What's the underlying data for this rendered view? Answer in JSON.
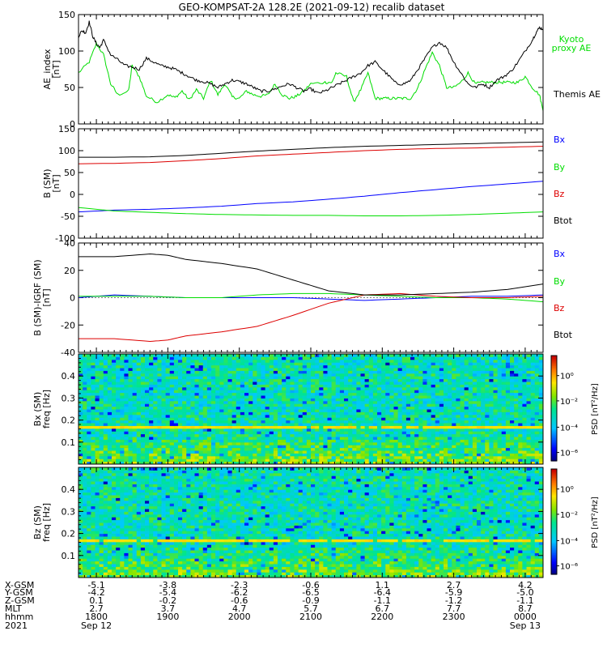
{
  "title": "GEO-KOMPSAT-2A 128.2E (2021-09-12) recalib dataset",
  "x_axis": {
    "range_hours": [
      17.75,
      24.25
    ],
    "rows": [
      {
        "label": "X-GSM",
        "values": [
          "-5.1",
          "-3.8",
          "-2.3",
          "-0.6",
          "1.1",
          "2.7",
          "4.2"
        ]
      },
      {
        "label": "Y-GSM",
        "values": [
          "-4.2",
          "-5.4",
          "-6.2",
          "-6.5",
          "-6.4",
          "-5.9",
          "-5.0"
        ]
      },
      {
        "label": "Z-GSM",
        "values": [
          "0.1",
          "-0.2",
          "-0.6",
          "-0.9",
          "-1.1",
          "-1.2",
          "-1.1"
        ]
      },
      {
        "label": "MLT",
        "values": [
          "2.7",
          "3.7",
          "4.7",
          "5.7",
          "6.7",
          "7.7",
          "8.7"
        ]
      },
      {
        "label": "hhmm",
        "values": [
          "1800",
          "1900",
          "2000",
          "2100",
          "2200",
          "2300",
          "0000"
        ]
      }
    ],
    "year_label": "2021",
    "date_start": "Sep 12",
    "date_end": "Sep 13"
  },
  "chart_data": [
    {
      "type": "line",
      "ylabel": "AE_index\n[nT]",
      "ylim": [
        0,
        150
      ],
      "yticks": [
        0,
        50,
        100,
        150
      ],
      "series": [
        {
          "name": "Kyoto\nproxy AE",
          "color": "#00dd00",
          "x": [
            17.75,
            17.9,
            18.0,
            18.1,
            18.2,
            18.3,
            18.45,
            18.5,
            18.6,
            18.7,
            18.85,
            19.0,
            19.1,
            19.2,
            19.3,
            19.4,
            19.5,
            19.6,
            19.7,
            19.8,
            19.9,
            20.0,
            20.1,
            20.2,
            20.3,
            20.4,
            20.5,
            20.6,
            20.7,
            20.8,
            20.9,
            21.0,
            21.2,
            21.3,
            21.35,
            21.5,
            21.6,
            21.7,
            21.8,
            21.9,
            22.0,
            22.1,
            22.2,
            22.3,
            22.4,
            22.5,
            22.6,
            22.7,
            22.8,
            22.9,
            23.0,
            23.1,
            23.2,
            23.3,
            23.4,
            23.5,
            23.6,
            23.7,
            23.8,
            23.9,
            24.0,
            24.1,
            24.2,
            24.25
          ],
          "y": [
            70,
            85,
            110,
            95,
            55,
            40,
            45,
            80,
            65,
            38,
            30,
            40,
            36,
            45,
            33,
            47,
            35,
            60,
            40,
            55,
            37,
            35,
            45,
            40,
            38,
            40,
            55,
            40,
            35,
            38,
            45,
            55,
            57,
            57,
            70,
            65,
            30,
            47,
            70,
            35,
            35,
            35,
            35,
            35,
            35,
            50,
            75,
            98,
            80,
            50,
            50,
            57,
            70,
            55,
            57,
            57,
            57,
            57,
            57,
            57,
            65,
            50,
            40,
            18
          ]
        },
        {
          "name": "Themis AE",
          "color": "#000000",
          "x": [
            17.75,
            17.8,
            17.85,
            17.9,
            17.95,
            18.0,
            18.05,
            18.1,
            18.2,
            18.3,
            18.4,
            18.5,
            18.6,
            18.7,
            18.8,
            18.9,
            19.0,
            19.1,
            19.2,
            19.3,
            19.4,
            19.5,
            19.6,
            19.7,
            19.8,
            19.9,
            20.0,
            20.1,
            20.2,
            20.3,
            20.4,
            20.5,
            20.6,
            20.7,
            20.8,
            20.9,
            21.0,
            21.1,
            21.2,
            21.3,
            21.4,
            21.5,
            21.6,
            21.7,
            21.8,
            21.9,
            22.0,
            22.1,
            22.2,
            22.3,
            22.4,
            22.5,
            22.6,
            22.7,
            22.8,
            22.9,
            23.0,
            23.1,
            23.2,
            23.3,
            23.4,
            23.5,
            23.6,
            23.7,
            23.8,
            23.9,
            24.0,
            24.1,
            24.15,
            24.2,
            24.25
          ],
          "y": [
            120,
            128,
            125,
            140,
            120,
            110,
            105,
            115,
            95,
            88,
            80,
            78,
            75,
            90,
            85,
            80,
            78,
            75,
            70,
            65,
            60,
            58,
            55,
            50,
            55,
            60,
            58,
            55,
            50,
            45,
            45,
            48,
            52,
            55,
            50,
            45,
            48,
            42,
            45,
            50,
            55,
            60,
            65,
            70,
            80,
            85,
            75,
            65,
            55,
            55,
            60,
            75,
            90,
            105,
            112,
            105,
            85,
            70,
            55,
            50,
            55,
            50,
            60,
            65,
            72,
            85,
            100,
            115,
            125,
            132,
            130
          ]
        }
      ]
    },
    {
      "type": "line",
      "ylabel": "B (SM)\n[nT]",
      "ylim": [
        -100,
        150
      ],
      "yticks": [
        -100,
        -50,
        0,
        50,
        100,
        150
      ],
      "series": [
        {
          "name": "Bx",
          "color": "#0000ff",
          "x": [
            17.75,
            18.25,
            18.75,
            19.25,
            19.75,
            20.25,
            20.75,
            21.25,
            21.75,
            22.25,
            22.75,
            23.25,
            23.75,
            24.25
          ],
          "y": [
            -40,
            -36,
            -34,
            -31,
            -27,
            -21,
            -17,
            -11,
            -4,
            4,
            11,
            18,
            24,
            30
          ]
        },
        {
          "name": "By",
          "color": "#00dd00",
          "x": [
            17.75,
            18.25,
            18.75,
            19.25,
            19.75,
            20.25,
            20.75,
            21.25,
            21.75,
            22.25,
            22.75,
            23.25,
            23.75,
            24.25
          ],
          "y": [
            -30,
            -38,
            -41,
            -44,
            -46,
            -47,
            -48,
            -48,
            -49,
            -49,
            -48,
            -46,
            -43,
            -40
          ]
        },
        {
          "name": "Bz",
          "color": "#dd0000",
          "x": [
            17.75,
            18.25,
            18.75,
            19.25,
            19.75,
            20.25,
            20.75,
            21.25,
            21.75,
            22.25,
            22.75,
            23.25,
            23.75,
            24.25
          ],
          "y": [
            70,
            71,
            73,
            77,
            82,
            88,
            92,
            96,
            100,
            103,
            105,
            106,
            108,
            110
          ]
        },
        {
          "name": "Btot",
          "color": "#000000",
          "x": [
            17.75,
            18.25,
            18.75,
            19.25,
            19.75,
            20.25,
            20.75,
            21.25,
            21.75,
            22.25,
            22.75,
            23.25,
            23.75,
            24.25
          ],
          "y": [
            85,
            85,
            86,
            89,
            94,
            99,
            103,
            107,
            110,
            112,
            114,
            116,
            118,
            120
          ]
        }
      ]
    },
    {
      "type": "line",
      "ylabel": "B (SM)-IGRF (SM)\n[nT]",
      "ylim": [
        -40,
        40
      ],
      "yticks": [
        -40,
        -20,
        0,
        20,
        40
      ],
      "series": [
        {
          "name": "Bx",
          "color": "#0000ff",
          "x": [
            17.75,
            18.25,
            18.75,
            19.25,
            19.75,
            20.25,
            20.75,
            21.25,
            21.75,
            22.25,
            22.75,
            23.25,
            23.75,
            24.25
          ],
          "y": [
            0,
            2,
            1,
            0,
            0,
            0,
            0,
            -1,
            -2,
            -1,
            0,
            1,
            1,
            2
          ]
        },
        {
          "name": "By",
          "color": "#00dd00",
          "x": [
            17.75,
            18.25,
            18.75,
            19.25,
            19.75,
            20.25,
            20.75,
            21.25,
            21.75,
            22.25,
            22.75,
            23.25,
            23.75,
            24.25
          ],
          "y": [
            1,
            1,
            1,
            0,
            0,
            2,
            3,
            3,
            2,
            1,
            0,
            0,
            -1,
            -3
          ]
        },
        {
          "name": "Bz",
          "color": "#dd0000",
          "x": [
            17.75,
            18.25,
            18.75,
            19,
            19.25,
            19.75,
            20.25,
            20.75,
            21.25,
            21.75,
            22.25,
            22.75,
            23.25,
            23.75,
            24.25
          ],
          "y": [
            -30,
            -30,
            -32,
            -31,
            -28,
            -25,
            -21,
            -13,
            -4,
            2,
            3,
            1,
            0,
            0,
            1
          ]
        },
        {
          "name": "Btot",
          "color": "#000000",
          "x": [
            17.75,
            18.25,
            18.75,
            19,
            19.25,
            19.75,
            20.25,
            20.75,
            21.25,
            21.75,
            22.25,
            22.75,
            23.25,
            23.75,
            24.25
          ],
          "y": [
            30,
            30,
            32,
            31,
            28,
            25,
            21,
            13,
            5,
            2,
            2,
            3,
            4,
            6,
            10
          ]
        }
      ]
    },
    {
      "type": "heatmap",
      "ylabel": "Bx (SM)\nfreq [Hz]",
      "ylim": [
        0,
        0.5
      ],
      "yticks": [
        0.1,
        0.2,
        0.3,
        0.4
      ],
      "colorbar_label": "PSD [nT²/Hz]",
      "colorbar_ticks": [
        "10⁰",
        "10⁻²",
        "10⁻⁴",
        "10⁻⁶"
      ],
      "band_hz": 0.165
    },
    {
      "type": "heatmap",
      "ylabel": "Bz (SM)\nfreq [Hz]",
      "ylim": [
        0,
        0.5
      ],
      "yticks": [
        0.1,
        0.2,
        0.3,
        0.4
      ],
      "colorbar_label": "PSD [nT²/Hz]",
      "colorbar_ticks": [
        "10⁰",
        "10⁻²",
        "10⁻⁴",
        "10⁻⁶"
      ],
      "band_hz": 0.165
    }
  ]
}
